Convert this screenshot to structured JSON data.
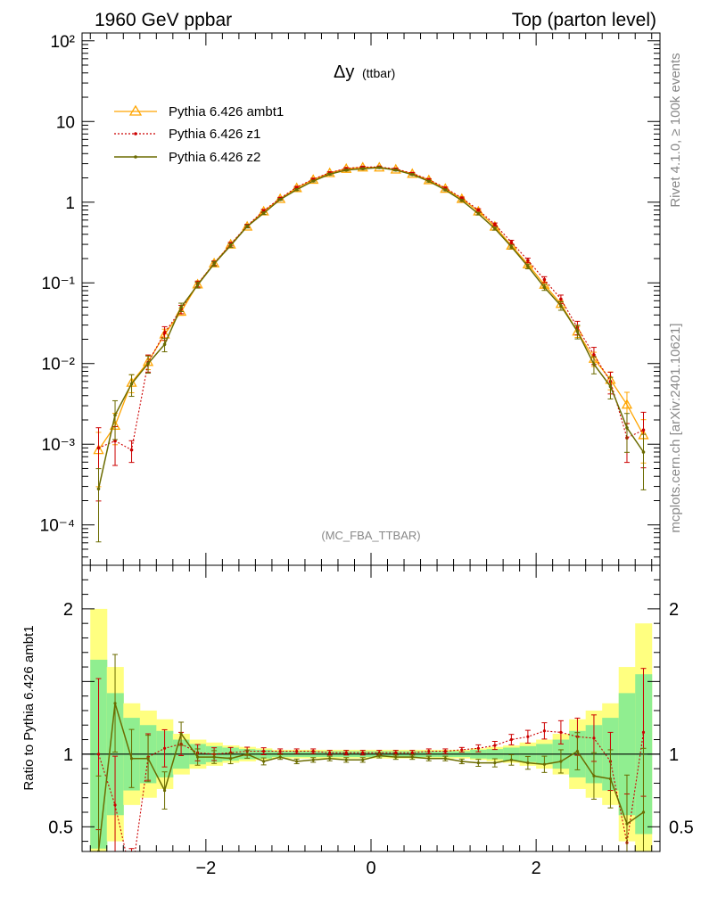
{
  "header": {
    "left": "1960 GeV ppbar",
    "right": "Top (parton level)"
  },
  "side": {
    "rivet": "Rivet 4.1.0, ≥ 100k events",
    "mcplots": "mcplots.cern.ch [arXiv:2401.10621]"
  },
  "chart_data": {
    "type": "line",
    "title": "Δy",
    "title_sub": "(ttbar)",
    "analysis": "(MC_FBA_TTBAR)",
    "xlabel": "",
    "ylabel_ratio": "Ratio to Pythia 6.426 ambt1",
    "xlim": [
      -3.5,
      3.5
    ],
    "ylim_main": [
      3.16e-05,
      125
    ],
    "ylim_ratio": [
      0.33,
      2.3
    ],
    "x_ticks": [
      "−2",
      "0",
      "2"
    ],
    "x_tick_values": [
      -2,
      0,
      2
    ],
    "y_ticks_main": [
      "10⁻⁴",
      "10⁻³",
      "10⁻²",
      "10⁻¹",
      "1",
      "10",
      "10²"
    ],
    "y_tick_values_main": [
      0.0001,
      0.001,
      0.01,
      0.1,
      1,
      10,
      100
    ],
    "y_ticks_ratio": [
      "0.5",
      "1",
      "2"
    ],
    "y_tick_values_ratio": [
      0.5,
      1,
      2
    ],
    "x": [
      -3.3,
      -3.1,
      -2.9,
      -2.7,
      -2.5,
      -2.3,
      -2.1,
      -1.9,
      -1.7,
      -1.5,
      -1.3,
      -1.1,
      -0.9,
      -0.7,
      -0.5,
      -0.3,
      -0.1,
      0.1,
      0.3,
      0.5,
      0.7,
      0.9,
      1.1,
      1.3,
      1.5,
      1.7,
      1.9,
      2.1,
      2.3,
      2.5,
      2.7,
      2.9,
      3.1,
      3.3
    ],
    "series": [
      {
        "name": "Pythia 6.426 ambt1",
        "color": "#ffa500",
        "values": [
          0.00085,
          0.0017,
          0.0058,
          0.0105,
          0.023,
          0.044,
          0.096,
          0.175,
          0.3,
          0.5,
          0.77,
          1.1,
          1.5,
          1.9,
          2.3,
          2.6,
          2.7,
          2.7,
          2.55,
          2.25,
          1.88,
          1.47,
          1.1,
          0.77,
          0.5,
          0.29,
          0.17,
          0.095,
          0.055,
          0.025,
          0.0115,
          0.0063,
          0.0031,
          0.0013
        ]
      },
      {
        "name": "Pythia 6.426 z1",
        "color": "#cc0000",
        "values": [
          0.0009,
          0.0011,
          0.00085,
          0.0103,
          0.024,
          0.047,
          0.097,
          0.175,
          0.302,
          0.51,
          0.785,
          1.12,
          1.53,
          1.93,
          2.32,
          2.62,
          2.72,
          2.73,
          2.58,
          2.28,
          1.91,
          1.5,
          1.13,
          0.8,
          0.53,
          0.32,
          0.19,
          0.11,
          0.063,
          0.028,
          0.0128,
          0.006,
          0.0012,
          0.0015
        ]
      },
      {
        "name": "Pythia 6.426 z2",
        "color": "#6b6b00",
        "values": [
          0.00028,
          0.0023,
          0.0056,
          0.01,
          0.0173,
          0.05,
          0.094,
          0.172,
          0.29,
          0.5,
          0.73,
          1.08,
          1.43,
          1.83,
          2.22,
          2.5,
          2.6,
          2.68,
          2.5,
          2.2,
          1.82,
          1.42,
          1.05,
          0.72,
          0.47,
          0.28,
          0.16,
          0.088,
          0.052,
          0.025,
          0.0098,
          0.0052,
          0.0016,
          0.0008
        ]
      }
    ],
    "ratio": [
      {
        "name": "Pythia 6.426 ambt1",
        "values": [
          1,
          1,
          1,
          1,
          1,
          1,
          1,
          1,
          1,
          1,
          1,
          1,
          1,
          1,
          1,
          1,
          1,
          1,
          1,
          1,
          1,
          1,
          1,
          1,
          1,
          1,
          1,
          1,
          1,
          1,
          1,
          1,
          1,
          1
        ]
      },
      {
        "name": "Pythia 6.426 z1",
        "values": [
          1.0,
          0.65,
          0.15,
          0.98,
          1.04,
          1.07,
          1.01,
          1.0,
          1.01,
          1.02,
          1.02,
          1.02,
          1.02,
          1.02,
          1.01,
          1.01,
          1.01,
          1.01,
          1.01,
          1.01,
          1.02,
          1.02,
          1.03,
          1.04,
          1.06,
          1.1,
          1.12,
          1.16,
          1.15,
          1.12,
          1.11,
          0.95,
          0.39,
          1.15
        ]
      },
      {
        "name": "Pythia 6.426 z2",
        "values": [
          0.33,
          1.35,
          0.97,
          0.97,
          0.75,
          1.14,
          0.98,
          0.98,
          0.97,
          1.0,
          0.95,
          0.98,
          0.95,
          0.96,
          0.97,
          0.96,
          0.96,
          0.99,
          0.98,
          0.98,
          0.97,
          0.97,
          0.95,
          0.94,
          0.94,
          0.96,
          0.94,
          0.93,
          0.95,
          1.02,
          0.85,
          0.83,
          0.52,
          0.6
        ]
      }
    ],
    "ratio_band_yellow": [
      1.0,
      0.6,
      0.35,
      0.3,
      0.24,
      0.14,
      0.1,
      0.08,
      0.06,
      0.05,
      0.04,
      0.03,
      0.03,
      0.03,
      0.03,
      0.03,
      0.03,
      0.03,
      0.03,
      0.03,
      0.03,
      0.03,
      0.03,
      0.04,
      0.05,
      0.06,
      0.08,
      0.1,
      0.14,
      0.24,
      0.3,
      0.35,
      0.6,
      0.9
    ],
    "ratio_band_green": [
      0.65,
      0.42,
      0.25,
      0.2,
      0.16,
      0.1,
      0.07,
      0.055,
      0.045,
      0.035,
      0.03,
      0.02,
      0.02,
      0.02,
      0.02,
      0.02,
      0.02,
      0.02,
      0.02,
      0.02,
      0.02,
      0.02,
      0.02,
      0.03,
      0.035,
      0.045,
      0.055,
      0.07,
      0.1,
      0.16,
      0.2,
      0.25,
      0.42,
      0.55
    ]
  }
}
